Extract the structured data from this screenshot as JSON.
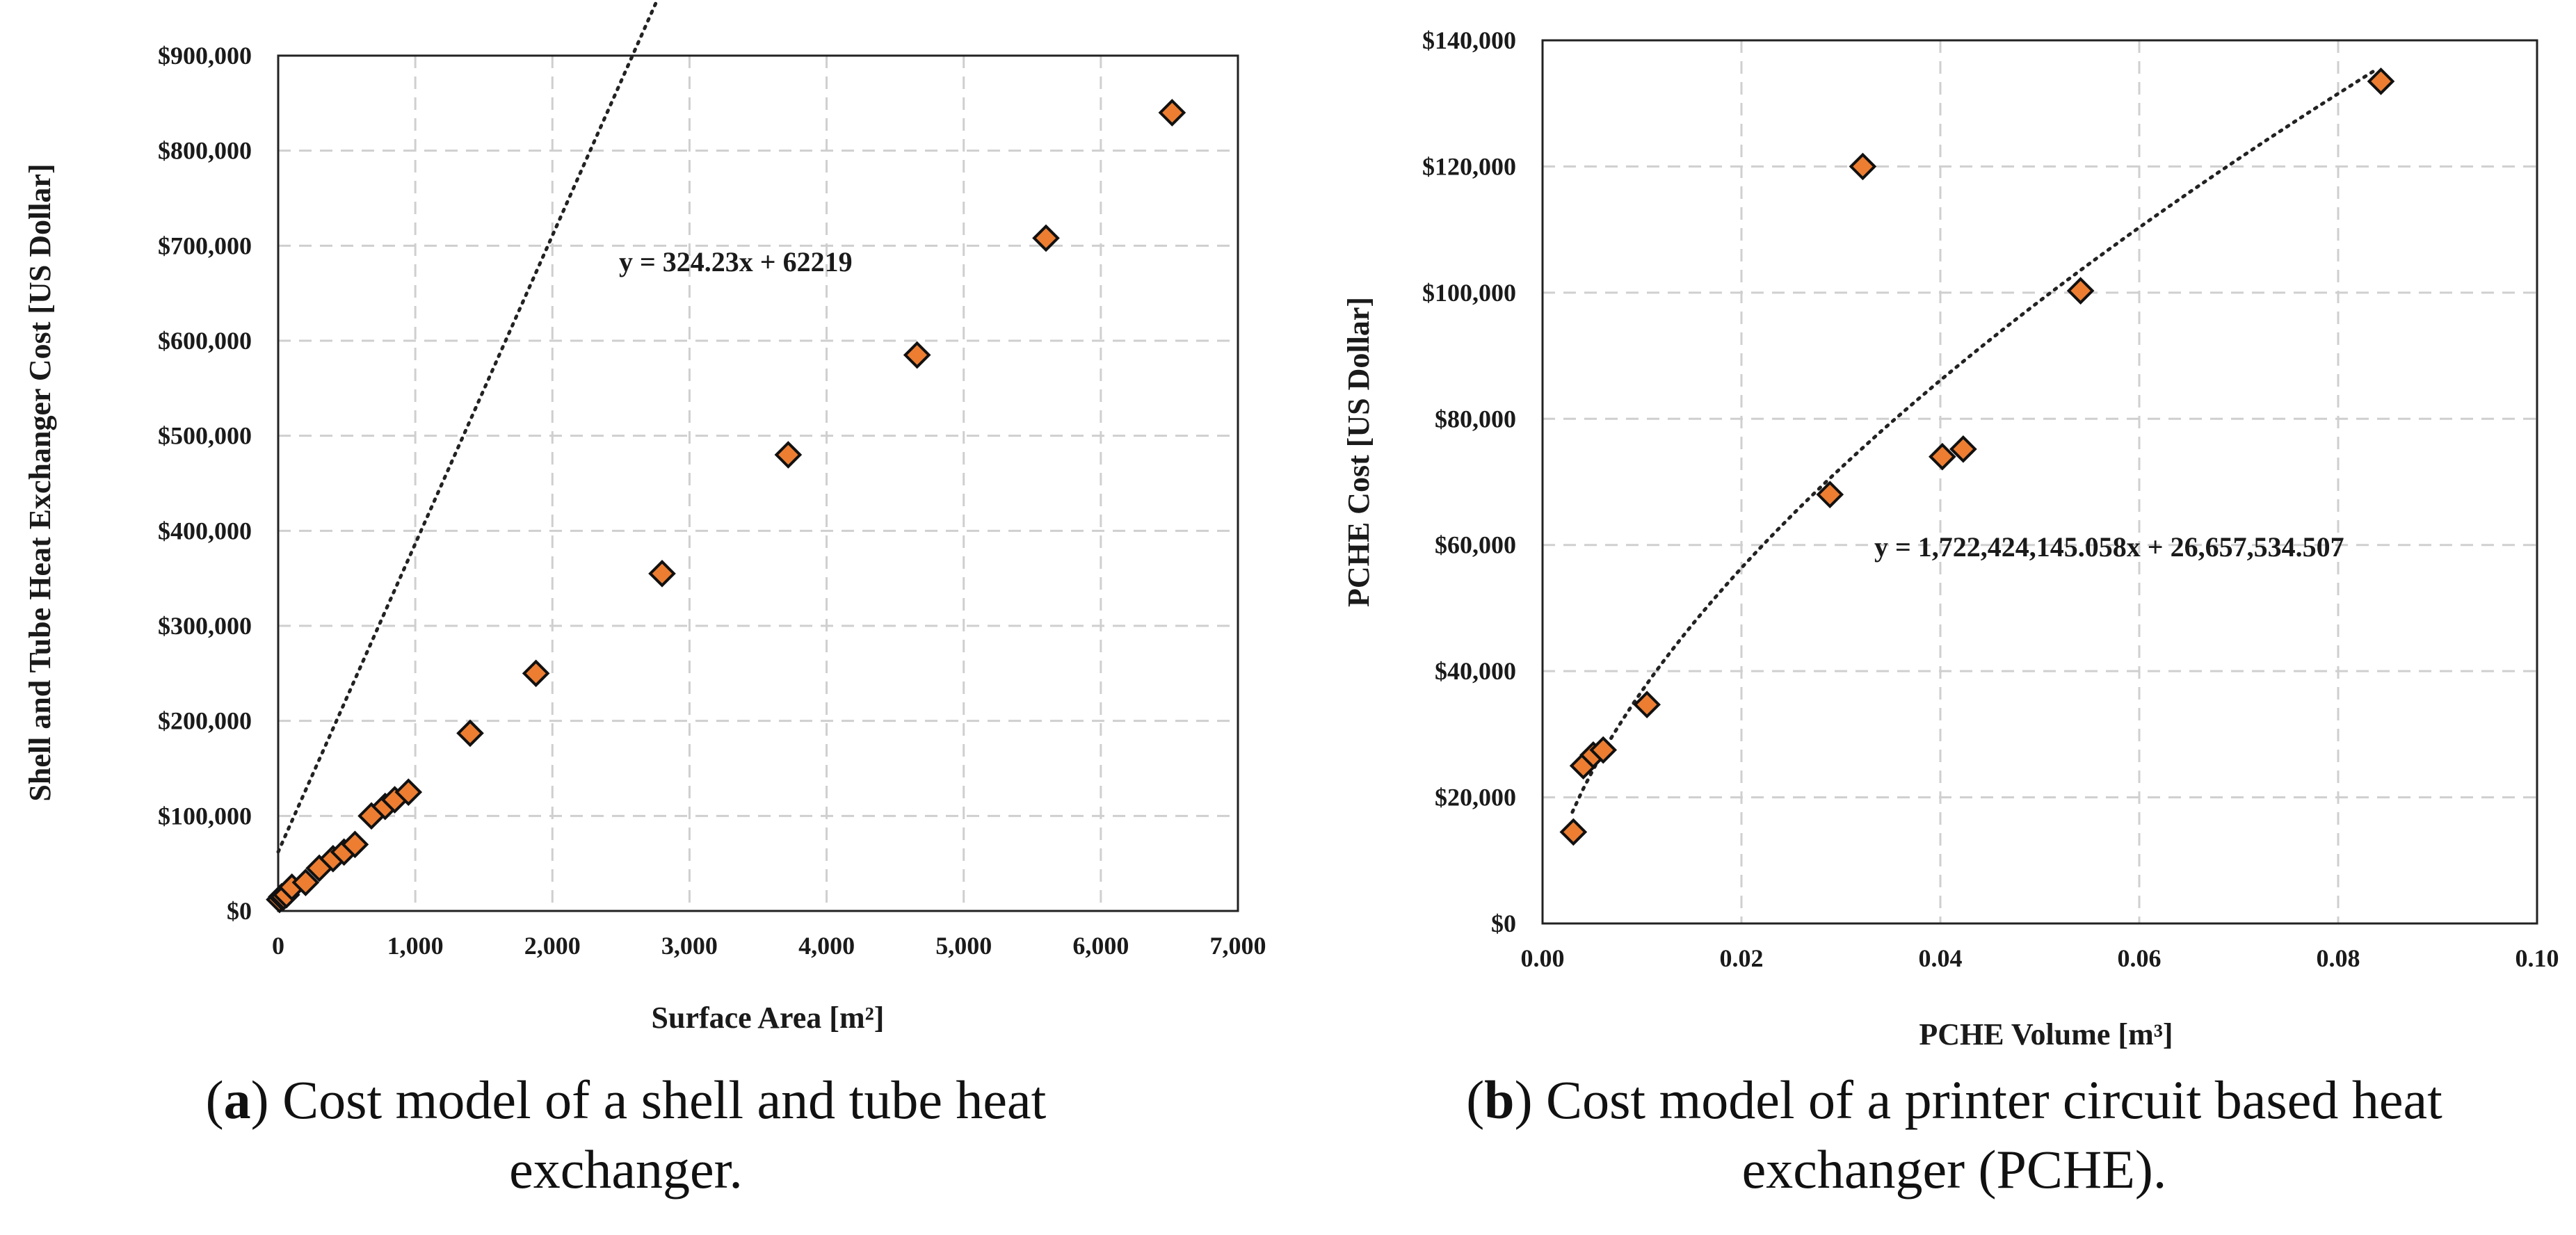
{
  "colors": {
    "marker": "#ED7D31",
    "marker_edge": "#111111",
    "grid": "#CFCFCF"
  },
  "chart_data": [
    {
      "type": "scatter",
      "xlabel": "Surface Area [m²]",
      "ylabel": "Shell and Tube Heat Exchanger Cost [US Dollar]",
      "xlim": [
        0,
        7000
      ],
      "ylim": [
        0,
        900000
      ],
      "xticks": [
        0,
        1000,
        2000,
        3000,
        4000,
        5000,
        6000,
        7000
      ],
      "yticks": [
        0,
        100000,
        200000,
        300000,
        400000,
        500000,
        600000,
        700000,
        800000,
        900000
      ],
      "x_tick_labels": [
        "0",
        "1,000",
        "2,000",
        "3,000",
        "4,000",
        "5,000",
        "6,000",
        "7,000"
      ],
      "y_tick_labels": [
        "$0",
        "$100,000",
        "$200,000",
        "$300,000",
        "$400,000",
        "$500,000",
        "$600,000",
        "$700,000",
        "$800,000",
        "$900,000"
      ],
      "grid": true,
      "legend": "none",
      "series": [
        {
          "x": [
            10,
            25,
            40,
            60,
            100,
            200,
            300,
            400,
            480,
            560,
            680,
            780,
            850,
            950,
            1400,
            1880,
            2800,
            3720,
            4660,
            5600,
            6520
          ],
          "y": [
            12000,
            15000,
            15000,
            17000,
            25000,
            30000,
            45000,
            55000,
            62000,
            70000,
            100000,
            110000,
            117000,
            125000,
            187000,
            250000,
            355000,
            480000,
            585000,
            708000,
            840000
          ]
        }
      ],
      "trendline": {
        "type": "linear",
        "equation": "y = 324.23x + 62219",
        "slope": 324.23,
        "intercept": 62219,
        "x_range": [
          0,
          6520
        ]
      }
    },
    {
      "type": "scatter",
      "xlabel": "PCHE Volume [m³]",
      "ylabel": "PCHE Cost [US Dollar]",
      "xlim": [
        0,
        0.1
      ],
      "ylim": [
        0,
        140000
      ],
      "xticks": [
        0,
        0.02,
        0.04,
        0.06,
        0.08,
        0.1
      ],
      "yticks": [
        0,
        20000,
        40000,
        60000,
        80000,
        100000,
        120000,
        140000
      ],
      "x_tick_labels": [
        "0.00",
        "0.02",
        "0.04",
        "0.06",
        "0.08",
        "0.10"
      ],
      "y_tick_labels": [
        "$0",
        "$20,000",
        "$40,000",
        "$60,000",
        "$80,000",
        "$100,000",
        "$120,000",
        "$140,000"
      ],
      "grid": true,
      "legend": "none",
      "series": [
        {
          "x": [
            0.0031,
            0.0041,
            0.0051,
            0.0061,
            0.0105,
            0.0289,
            0.0322,
            0.0402,
            0.0423,
            0.0541,
            0.0843
          ],
          "y": [
            14500,
            25000,
            26700,
            27500,
            34700,
            68000,
            120000,
            74000,
            75200,
            100300,
            133500
          ]
        }
      ],
      "trendline": {
        "type": "power",
        "equation": "y = 1,722,424,145.058x + 26,657,534.507",
        "x_range": [
          0.003,
          0.084
        ]
      }
    }
  ],
  "captions": [
    {
      "label": "a",
      "line1": ") Cost model of a shell and tube heat",
      "line2": "exchanger."
    },
    {
      "label": "b",
      "line1": ") Cost model of a printer circuit based heat",
      "line2": "exchanger (PCHE)."
    }
  ]
}
